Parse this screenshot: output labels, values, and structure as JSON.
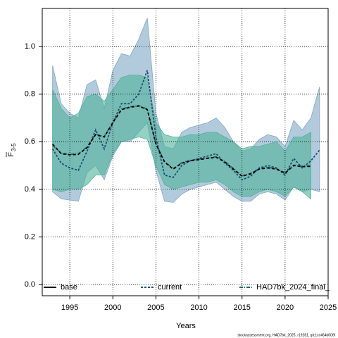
{
  "chart_data": {
    "type": "line",
    "xlabel": "Years",
    "ylabel": "F",
    "ylabel_subscript": "3-5",
    "footer": "stockassessment.org, HAD7bk_2025, r19281, git:1cc464b606f",
    "x": [
      1993,
      1994,
      1995,
      1996,
      1997,
      1998,
      1999,
      2000,
      2001,
      2002,
      2003,
      2004,
      2005,
      2006,
      2007,
      2008,
      2009,
      2010,
      2011,
      2012,
      2013,
      2014,
      2015,
      2016,
      2017,
      2018,
      2019,
      2020,
      2021,
      2022,
      2023,
      2024
    ],
    "xlim": [
      1991.8,
      2025
    ],
    "xticks": [
      1995,
      2000,
      2005,
      2010,
      2015,
      2020,
      2025
    ],
    "ylim": [
      -0.047,
      1.16
    ],
    "yticks": [
      {
        "value": 0,
        "label": "0.0"
      },
      {
        "value": 0.2,
        "label": "0.2"
      },
      {
        "value": 0.4,
        "label": "0.4"
      },
      {
        "value": 0.6,
        "label": "0.6"
      },
      {
        "value": 0.8,
        "label": "0.8"
      },
      {
        "value": 1,
        "label": "1.0"
      }
    ],
    "grid": true,
    "legend": "bottom",
    "series": [
      {
        "name": "base",
        "color": "#000000",
        "dash": "4,3",
        "values": [
          0.59,
          0.55,
          0.545,
          0.547,
          0.575,
          0.63,
          0.62,
          0.68,
          0.735,
          0.745,
          0.75,
          0.735,
          0.59,
          0.515,
          0.485,
          0.51,
          0.52,
          0.525,
          0.53,
          0.535,
          0.515,
          0.485,
          0.455,
          0.465,
          0.485,
          0.49,
          0.485,
          0.468,
          0.5,
          0.495,
          0.497,
          null
        ]
      },
      {
        "name": "current",
        "color": "#1f4e79",
        "dash": "3,2",
        "band_color": "#7fa8c4",
        "values": [
          0.57,
          0.51,
          0.49,
          0.48,
          0.56,
          0.65,
          0.57,
          0.68,
          0.76,
          0.76,
          0.8,
          0.9,
          0.62,
          0.46,
          0.45,
          0.5,
          0.52,
          0.53,
          0.54,
          0.55,
          0.51,
          0.48,
          0.44,
          0.455,
          0.49,
          0.5,
          0.49,
          0.46,
          0.53,
          0.49,
          0.52,
          0.565
        ],
        "upper": [
          0.92,
          0.76,
          0.72,
          0.7,
          0.84,
          0.86,
          0.74,
          0.9,
          0.97,
          0.96,
          1.03,
          1.12,
          0.72,
          0.58,
          0.57,
          0.64,
          0.66,
          0.67,
          0.68,
          0.7,
          0.66,
          0.6,
          0.56,
          0.57,
          0.61,
          0.63,
          0.62,
          0.58,
          0.69,
          0.65,
          0.7,
          0.83
        ],
        "lower": [
          0.39,
          0.36,
          0.355,
          0.35,
          0.47,
          0.5,
          0.44,
          0.54,
          0.6,
          0.6,
          0.64,
          0.68,
          0.48,
          0.35,
          0.345,
          0.38,
          0.4,
          0.41,
          0.42,
          0.43,
          0.4,
          0.37,
          0.35,
          0.35,
          0.38,
          0.39,
          0.38,
          0.355,
          0.41,
          0.39,
          0.4,
          0.39
        ]
      },
      {
        "name": "HAD7bk_2024_final_",
        "color": "#1e6b5c",
        "dash": "5,2,1,2",
        "band_color": "#4fb39a",
        "values": [
          0.585,
          0.552,
          0.547,
          0.55,
          0.578,
          0.632,
          0.622,
          0.682,
          0.737,
          0.747,
          0.752,
          0.737,
          0.592,
          0.517,
          0.487,
          0.512,
          0.522,
          0.527,
          0.532,
          0.537,
          0.517,
          0.487,
          0.457,
          0.467,
          0.487,
          0.492,
          0.487,
          0.47,
          0.502,
          0.497,
          0.499,
          null
        ],
        "upper": [
          0.82,
          0.74,
          0.7,
          0.72,
          0.79,
          0.8,
          0.77,
          0.82,
          0.87,
          0.88,
          0.88,
          0.87,
          0.68,
          0.63,
          0.62,
          0.62,
          0.63,
          0.63,
          0.64,
          0.64,
          0.62,
          0.6,
          0.57,
          0.58,
          0.58,
          0.59,
          0.6,
          0.56,
          0.62,
          0.62,
          0.64,
          null
        ],
        "lower": [
          0.4,
          0.39,
          0.4,
          0.4,
          0.42,
          0.46,
          0.46,
          0.55,
          0.6,
          0.61,
          0.62,
          0.61,
          0.5,
          0.42,
          0.4,
          0.41,
          0.42,
          0.43,
          0.43,
          0.44,
          0.42,
          0.39,
          0.37,
          0.37,
          0.39,
          0.4,
          0.39,
          0.37,
          0.41,
          0.39,
          0.36,
          null
        ]
      }
    ]
  }
}
